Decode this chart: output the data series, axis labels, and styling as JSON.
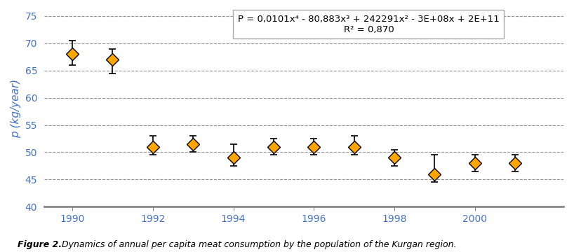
{
  "years": [
    1990,
    1991,
    1992,
    1993,
    1994,
    1995,
    1996,
    1997,
    1998,
    1999,
    2000,
    2001
  ],
  "values": [
    68.0,
    67.0,
    51.0,
    51.5,
    49.0,
    51.0,
    51.0,
    51.0,
    49.0,
    46.0,
    48.0,
    48.0
  ],
  "yerr_lower": [
    2.0,
    2.5,
    1.5,
    1.5,
    1.5,
    1.5,
    1.5,
    1.5,
    1.5,
    1.5,
    1.5,
    1.5
  ],
  "yerr_upper": [
    2.5,
    2.0,
    2.0,
    1.5,
    2.5,
    1.5,
    1.5,
    2.0,
    1.5,
    3.5,
    1.5,
    1.5
  ],
  "xlim": [
    1989.3,
    2002.2
  ],
  "ylim": [
    40,
    76
  ],
  "yticks": [
    40,
    45,
    50,
    55,
    60,
    65,
    70,
    75
  ],
  "xticks": [
    1990,
    1992,
    1994,
    1996,
    1998,
    2000
  ],
  "ylabel": "p (kg/year)",
  "equation_line1": "P = 0,0101x⁴ - 80,883x³ + 242291x² - 3E+08x + 2E+11",
  "equation_line2": "R² = 0,870",
  "diamond_color": "#FFA500",
  "diamond_edge_color": "#000000",
  "line_color": "#000000",
  "grid_color": "#888888",
  "axis_color": "#888888",
  "bg_color": "#ffffff",
  "caption_bold": "Figure 2.",
  "caption_italic": " Dynamics of annual per capita meat consumption by the population of the Kurgan region.",
  "tick_label_color": "#4472C4"
}
